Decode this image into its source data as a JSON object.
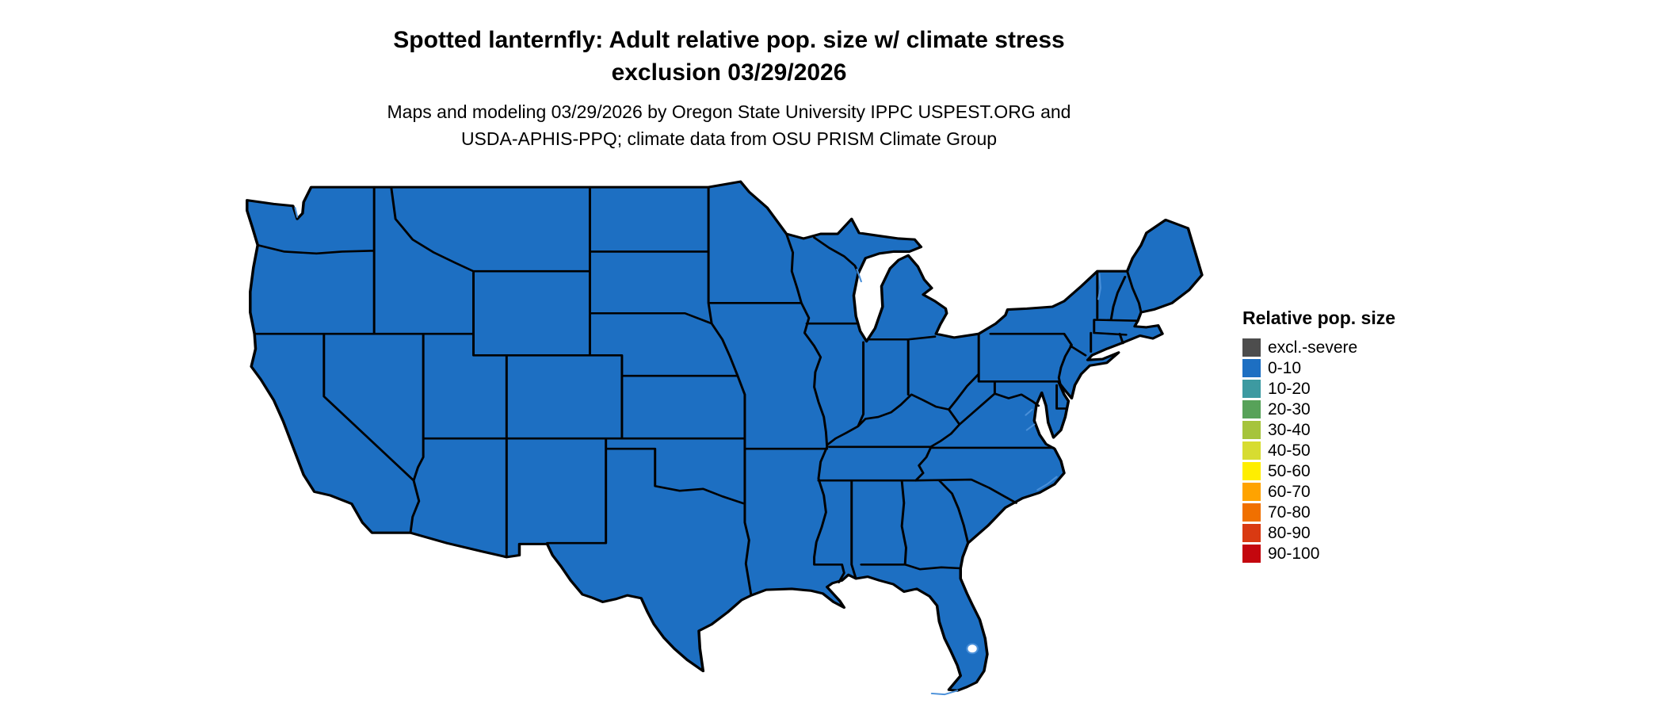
{
  "figure": {
    "title_line1": "Spotted lanternfly: Adult relative pop. size w/ climate stress",
    "title_line2": "exclusion 03/29/2026",
    "subtitle_line1": "Maps and modeling 03/29/2026 by Oregon State University IPPC USPEST.ORG and",
    "subtitle_line2": "USDA-APHIS-PPQ; climate data from OSU PRISM Climate Group"
  },
  "legend": {
    "title": "Relative pop. size",
    "entries": [
      {
        "label": "excl.-severe",
        "color": "#4d4d4d"
      },
      {
        "label": "0-10",
        "color": "#1d6fc2"
      },
      {
        "label": "10-20",
        "color": "#3d9aa1"
      },
      {
        "label": "20-30",
        "color": "#57a259"
      },
      {
        "label": "30-40",
        "color": "#a6c43c"
      },
      {
        "label": "40-50",
        "color": "#d7dc31"
      },
      {
        "label": "50-60",
        "color": "#ffee00"
      },
      {
        "label": "60-70",
        "color": "#ffa300"
      },
      {
        "label": "70-80",
        "color": "#f07000"
      },
      {
        "label": "80-90",
        "color": "#d93a12"
      },
      {
        "label": "90-100",
        "color": "#c4070e"
      }
    ]
  },
  "map": {
    "land_fill": "#1d6fc2",
    "border_color": "#000000",
    "water_color": "#4a90d9",
    "uniform_value_bin": "0-10"
  },
  "chart_data": {
    "type": "choropleth_map",
    "title": "Spotted lanternfly: Adult relative pop. size w/ climate stress exclusion 03/29/2026",
    "legend_title": "Relative pop. size",
    "bins": [
      "excl.-severe",
      "0-10",
      "10-20",
      "20-30",
      "30-40",
      "40-50",
      "50-60",
      "60-70",
      "70-80",
      "80-90",
      "90-100"
    ],
    "observation": "All mapped states rendered in the 0-10 bin (blue)"
  }
}
